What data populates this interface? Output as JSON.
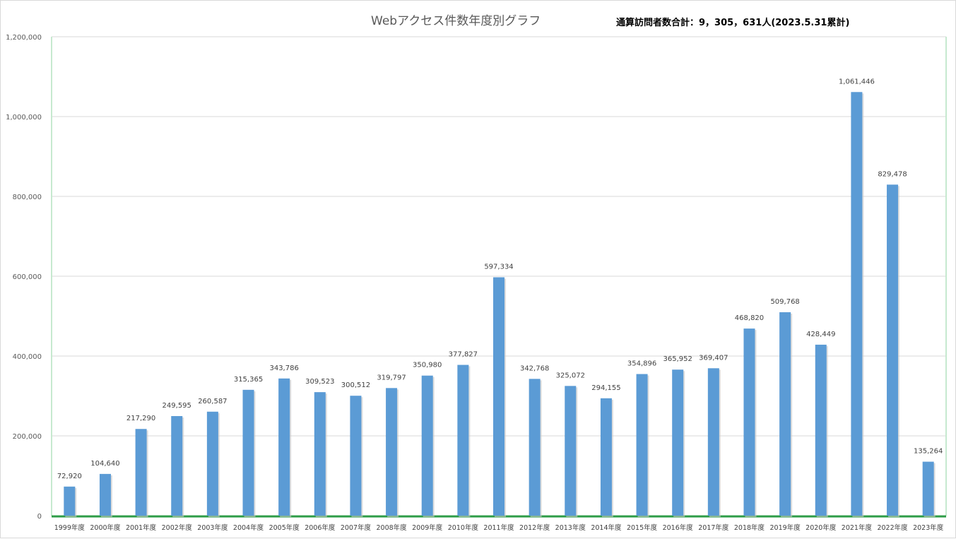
{
  "chart_data": {
    "type": "bar",
    "title": "Webアクセス件数年度別グラフ",
    "annotation": "通算訪問者数合計：9，305，631人(2023.5.31累計)",
    "xlabel": "",
    "ylabel": "",
    "ylim": [
      0,
      1200000
    ],
    "yticks": [
      "0",
      "200,000",
      "400,000",
      "600,000",
      "800,000",
      "1,000,000",
      "1,200,000"
    ],
    "grid": true,
    "legend": "none",
    "bar_color": "#5b9bd5",
    "categories": [
      "1999年度",
      "2000年度",
      "2001年度",
      "2002年度",
      "2003年度",
      "2004年度",
      "2005年度",
      "2006年度",
      "2007年度",
      "2008年度",
      "2009年度",
      "2010年度",
      "2011年度",
      "2012年度",
      "2013年度",
      "2014年度",
      "2015年度",
      "2016年度",
      "2017年度",
      "2018年度",
      "2019年度",
      "2020年度",
      "2021年度",
      "2022年度",
      "2023年度"
    ],
    "values": [
      72920,
      104640,
      217290,
      249595,
      260587,
      315365,
      343786,
      309523,
      300512,
      319797,
      350980,
      377827,
      597334,
      342768,
      325072,
      294155,
      354896,
      365952,
      369407,
      468820,
      509768,
      428449,
      1061446,
      829478,
      135264
    ],
    "value_labels": [
      "72,920",
      "104,640",
      "217,290",
      "249,595",
      "260,587",
      "315,365",
      "343,786",
      "309,523",
      "300,512",
      "319,797",
      "350,980",
      "377,827",
      "597,334",
      "342,768",
      "325,072",
      "294,155",
      "354,896",
      "365,952",
      "369,407",
      "468,820",
      "509,768",
      "428,449",
      "1,061,446",
      "829,478",
      "135,264"
    ]
  }
}
